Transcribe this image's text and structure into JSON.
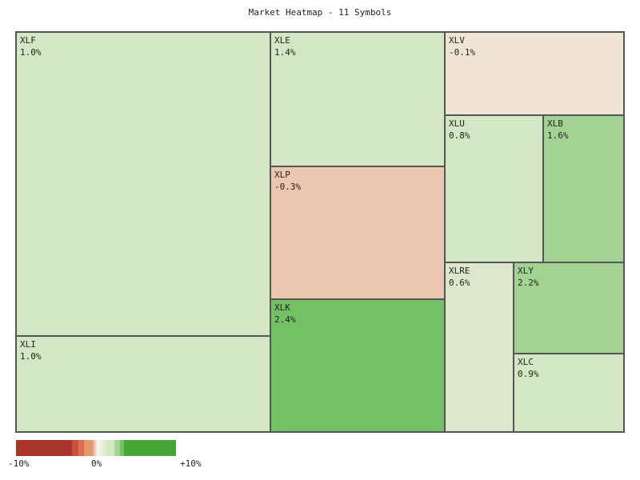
{
  "chart_data": {
    "type": "treemap",
    "title": "Market Heatmap - 11 Symbols",
    "items": [
      {
        "symbol": "XLF",
        "change": "1.0%",
        "value": 1.0,
        "color": "#d4e7c4"
      },
      {
        "symbol": "XLI",
        "change": "1.0%",
        "value": 1.0,
        "color": "#d4e7c4"
      },
      {
        "symbol": "XLE",
        "change": "1.4%",
        "value": 1.4,
        "color": "#d4e7c4"
      },
      {
        "symbol": "XLP",
        "change": "-0.3%",
        "value": -0.3,
        "color": "#ecc7b0"
      },
      {
        "symbol": "XLK",
        "change": "2.4%",
        "value": 2.4,
        "color": "#74c165"
      },
      {
        "symbol": "XLV",
        "change": "-0.1%",
        "value": -0.1,
        "color": "#f0e4d6"
      },
      {
        "symbol": "XLU",
        "change": "0.8%",
        "value": 0.8,
        "color": "#d4e7c4"
      },
      {
        "symbol": "XLB",
        "change": "1.6%",
        "value": 1.6,
        "color": "#a3d393"
      },
      {
        "symbol": "XLRE",
        "change": "0.6%",
        "value": 0.6,
        "color": "#dce7cc"
      },
      {
        "symbol": "XLY",
        "change": "2.2%",
        "value": 2.2,
        "color": "#a3d393"
      },
      {
        "symbol": "XLC",
        "change": "0.9%",
        "value": 0.9,
        "color": "#d4e7c4"
      }
    ],
    "legend": {
      "min_label": "-10%",
      "mid_label": "0%",
      "max_label": "+10%",
      "range": [
        -10,
        10
      ],
      "colors": [
        "#a9362c",
        "#c8503e",
        "#d8714f",
        "#e8956f",
        "#f3dccb",
        "#e6f0da",
        "#d4e7c4",
        "#a5d593",
        "#72c163",
        "#45a735"
      ]
    }
  }
}
